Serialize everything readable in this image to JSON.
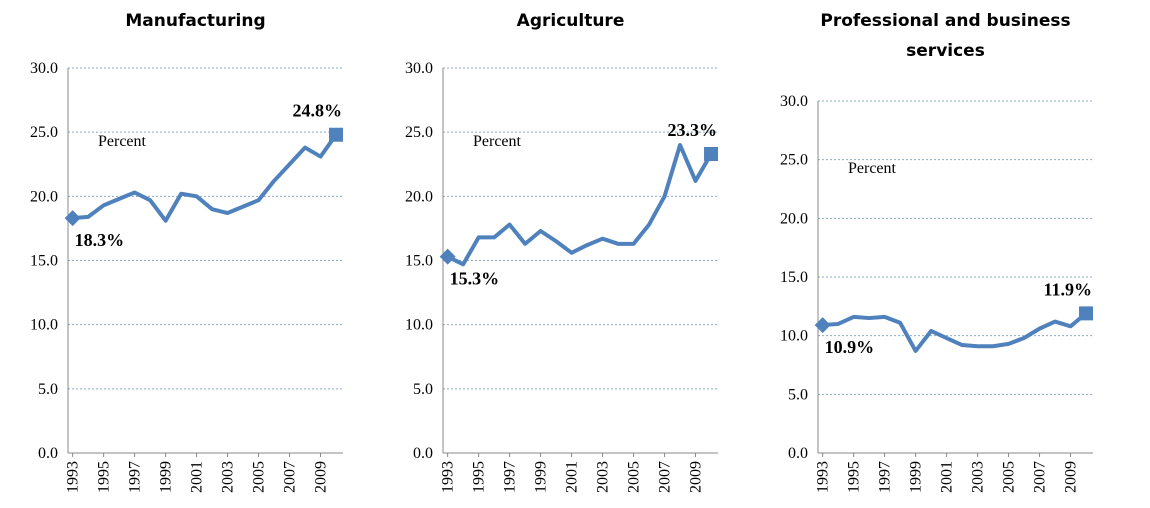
{
  "chart_data": [
    {
      "type": "line",
      "title": "Manufacturing",
      "annotation": "Percent",
      "color": "#4f81bd",
      "x": [
        1993,
        1994,
        1995,
        1996,
        1997,
        1998,
        1999,
        2000,
        2001,
        2002,
        2003,
        2004,
        2005,
        2006,
        2007,
        2008,
        2009,
        2010
      ],
      "values": [
        18.3,
        18.4,
        19.3,
        19.8,
        20.3,
        19.7,
        18.1,
        20.2,
        20.0,
        19.0,
        18.7,
        19.2,
        19.7,
        21.2,
        22.5,
        23.8,
        23.1,
        24.8
      ],
      "value_labels": [
        "18.3%",
        null,
        null,
        null,
        null,
        null,
        null,
        null,
        null,
        null,
        null,
        null,
        null,
        null,
        null,
        null,
        null,
        "24.8%"
      ],
      "xlim": [
        1992.7,
        2010.45
      ],
      "xticks": [
        1993,
        1995,
        1997,
        1999,
        2001,
        2003,
        2005,
        2007,
        2009
      ],
      "ylim": [
        0,
        30
      ],
      "yticks": [
        {
          "value": 0,
          "label": "0.0"
        },
        {
          "value": 5,
          "label": "5.0"
        },
        {
          "value": 10,
          "label": "10.0"
        },
        {
          "value": 15,
          "label": "15.0"
        },
        {
          "value": 20,
          "label": "20.0"
        },
        {
          "value": 25,
          "label": "25.0"
        },
        {
          "value": 30,
          "label": "30.0"
        }
      ],
      "grid": true
    },
    {
      "type": "line",
      "title": "Agriculture",
      "annotation": "Percent",
      "color": "#4f81bd",
      "x": [
        1993,
        1994,
        1995,
        1996,
        1997,
        1998,
        1999,
        2000,
        2001,
        2002,
        2003,
        2004,
        2005,
        2006,
        2007,
        2008,
        2009,
        2010
      ],
      "values": [
        15.3,
        14.7,
        16.8,
        16.8,
        17.8,
        16.3,
        17.3,
        16.5,
        15.6,
        16.2,
        16.7,
        16.3,
        16.3,
        17.8,
        20.0,
        24.0,
        21.2,
        23.3
      ],
      "value_labels": [
        "15.3%",
        null,
        null,
        null,
        null,
        null,
        null,
        null,
        null,
        null,
        null,
        null,
        null,
        null,
        null,
        null,
        null,
        "23.3%"
      ],
      "xlim": [
        1992.7,
        2010.45
      ],
      "xticks": [
        1993,
        1995,
        1997,
        1999,
        2001,
        2003,
        2005,
        2007,
        2009
      ],
      "ylim": [
        0,
        30
      ],
      "yticks": [
        {
          "value": 0,
          "label": "0.0"
        },
        {
          "value": 5,
          "label": "5.0"
        },
        {
          "value": 10,
          "label": "10.0"
        },
        {
          "value": 15,
          "label": "15.0"
        },
        {
          "value": 20,
          "label": "20.0"
        },
        {
          "value": 25,
          "label": "25.0"
        },
        {
          "value": 30,
          "label": "30.0"
        }
      ],
      "grid": true
    },
    {
      "type": "line",
      "title": "Professional and business services",
      "annotation": "Percent",
      "color": "#4f81bd",
      "x": [
        1993,
        1994,
        1995,
        1996,
        1997,
        1998,
        1999,
        2000,
        2001,
        2002,
        2003,
        2004,
        2005,
        2006,
        2007,
        2008,
        2009,
        2010
      ],
      "values": [
        10.9,
        11.0,
        11.6,
        11.5,
        11.6,
        11.1,
        8.7,
        10.4,
        9.8,
        9.2,
        9.1,
        9.1,
        9.3,
        9.8,
        10.6,
        11.2,
        10.8,
        11.9
      ],
      "value_labels": [
        "10.9%",
        null,
        null,
        null,
        null,
        null,
        null,
        null,
        null,
        null,
        null,
        null,
        null,
        null,
        null,
        null,
        null,
        "11.9%"
      ],
      "xlim": [
        1992.7,
        2010.45
      ],
      "xticks": [
        1993,
        1995,
        1997,
        1999,
        2001,
        2003,
        2005,
        2007,
        2009
      ],
      "ylim": [
        0,
        30
      ],
      "yticks": [
        {
          "value": 0,
          "label": "0.0"
        },
        {
          "value": 5,
          "label": "5.0"
        },
        {
          "value": 10,
          "label": "10.0"
        },
        {
          "value": 15,
          "label": "15.0"
        },
        {
          "value": 20,
          "label": "20.0"
        },
        {
          "value": 25,
          "label": "25.0"
        },
        {
          "value": 30,
          "label": "30.0"
        }
      ],
      "grid": true
    }
  ]
}
